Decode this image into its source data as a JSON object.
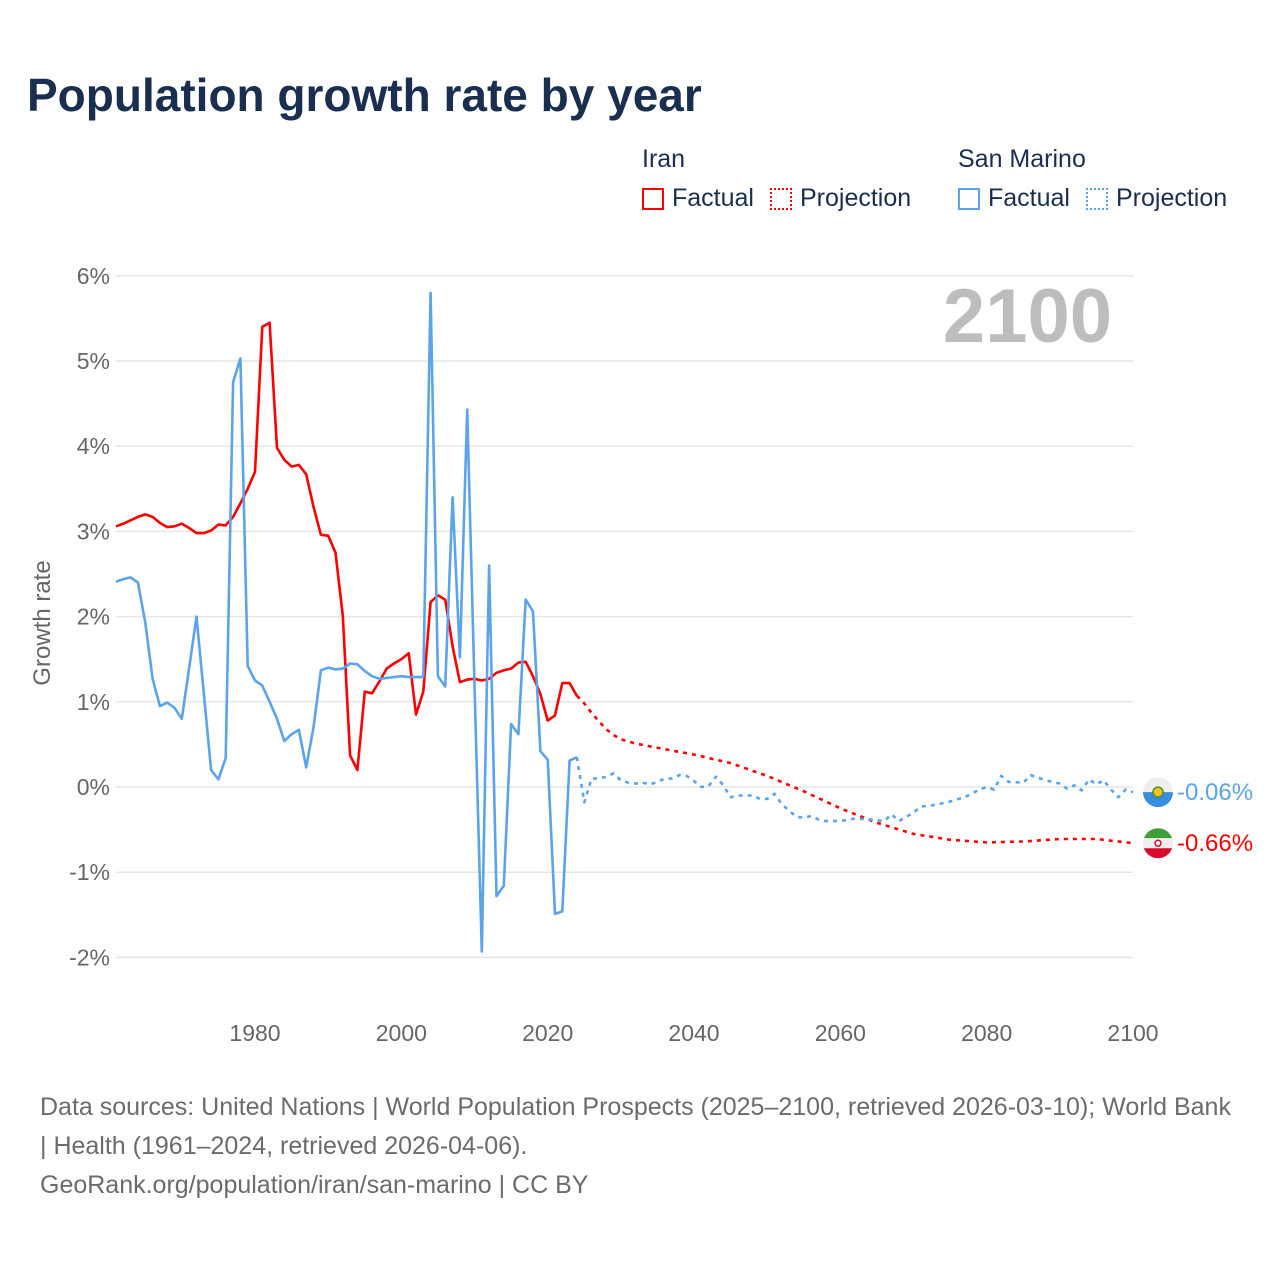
{
  "title": "Population growth rate by year",
  "legend": {
    "groups": [
      {
        "name": "Iran",
        "factual": "Factual",
        "projection": "Projection",
        "color": "#ff0000"
      },
      {
        "name": "San Marino",
        "factual": "Factual",
        "projection": "Projection",
        "color": "#5ba4ea"
      }
    ]
  },
  "current_year_label": "2100",
  "footer": {
    "sources": "Data sources: United Nations | World Population Prospects (2025–2100, retrieved 2026-03-10); World Bank | Health (1961–2024, retrieved 2026-04-06).",
    "credit": "GeoRank.org/population/iran/san-marino | CC BY"
  },
  "chart_data": {
    "type": "line",
    "title": "Population growth rate by year",
    "xlabel": "",
    "ylabel": "Growth rate",
    "xlim": [
      1961,
      2100
    ],
    "ylim": [
      -2.6,
      6
    ],
    "xticks": [
      1980,
      2000,
      2020,
      2040,
      2060,
      2080,
      2100
    ],
    "xtick_labels": [
      "1980",
      "2000",
      "2020",
      "2040",
      "2060",
      "2080",
      "2100"
    ],
    "yticks": [
      6,
      5,
      4,
      3,
      2,
      1,
      0,
      -1,
      -2
    ],
    "ytick_labels": [
      "6%",
      "5%",
      "4%",
      "3%",
      "2%",
      "1%",
      "0%",
      "-1%",
      "-2%"
    ],
    "grid": true,
    "legend_position": "top-right",
    "series": [
      {
        "name": "Iran",
        "kind": "factual",
        "color": "#ff0000",
        "points": [
          [
            1961,
            3.06
          ],
          [
            1962,
            3.09
          ],
          [
            1963,
            3.13
          ],
          [
            1964,
            3.17
          ],
          [
            1965,
            3.2
          ],
          [
            1966,
            3.17
          ],
          [
            1967,
            3.1
          ],
          [
            1968,
            3.05
          ],
          [
            1969,
            3.06
          ],
          [
            1970,
            3.09
          ],
          [
            1971,
            3.04
          ],
          [
            1972,
            2.98
          ],
          [
            1973,
            2.98
          ],
          [
            1974,
            3.01
          ],
          [
            1975,
            3.08
          ],
          [
            1976,
            3.07
          ],
          [
            1977,
            3.17
          ],
          [
            1978,
            3.33
          ],
          [
            1979,
            3.5
          ],
          [
            1980,
            3.7
          ],
          [
            1981,
            5.4
          ],
          [
            1982,
            5.45
          ],
          [
            1983,
            3.98
          ],
          [
            1984,
            3.84
          ],
          [
            1985,
            3.76
          ],
          [
            1986,
            3.78
          ],
          [
            1987,
            3.67
          ],
          [
            1988,
            3.29
          ],
          [
            1989,
            2.96
          ],
          [
            1990,
            2.95
          ],
          [
            1991,
            2.75
          ],
          [
            1992,
            2.01
          ],
          [
            1993,
            0.37
          ],
          [
            1994,
            0.2
          ],
          [
            1995,
            1.12
          ],
          [
            1996,
            1.1
          ],
          [
            1997,
            1.24
          ],
          [
            1998,
            1.39
          ],
          [
            1999,
            1.45
          ],
          [
            2000,
            1.5
          ],
          [
            2001,
            1.57
          ],
          [
            2002,
            0.85
          ],
          [
            2003,
            1.12
          ],
          [
            2004,
            2.17
          ],
          [
            2005,
            2.25
          ],
          [
            2006,
            2.2
          ],
          [
            2007,
            1.65
          ],
          [
            2008,
            1.23
          ],
          [
            2009,
            1.26
          ],
          [
            2010,
            1.27
          ],
          [
            2011,
            1.25
          ],
          [
            2012,
            1.27
          ],
          [
            2013,
            1.34
          ],
          [
            2014,
            1.37
          ],
          [
            2015,
            1.39
          ],
          [
            2016,
            1.46
          ],
          [
            2017,
            1.47
          ],
          [
            2018,
            1.3
          ],
          [
            2019,
            1.09
          ],
          [
            2020,
            0.78
          ],
          [
            2021,
            0.84
          ],
          [
            2022,
            1.22
          ],
          [
            2023,
            1.22
          ],
          [
            2024,
            1.07
          ]
        ]
      },
      {
        "name": "Iran",
        "kind": "projection",
        "color": "#ff0000",
        "points": [
          [
            2024,
            1.07
          ],
          [
            2025,
            0.98
          ],
          [
            2026,
            0.87
          ],
          [
            2027,
            0.77
          ],
          [
            2028,
            0.68
          ],
          [
            2029,
            0.61
          ],
          [
            2030,
            0.56
          ],
          [
            2032,
            0.51
          ],
          [
            2035,
            0.46
          ],
          [
            2040,
            0.38
          ],
          [
            2045,
            0.28
          ],
          [
            2050,
            0.13
          ],
          [
            2055,
            -0.05
          ],
          [
            2060,
            -0.25
          ],
          [
            2065,
            -0.42
          ],
          [
            2070,
            -0.55
          ],
          [
            2075,
            -0.62
          ],
          [
            2080,
            -0.65
          ],
          [
            2085,
            -0.64
          ],
          [
            2090,
            -0.61
          ],
          [
            2095,
            -0.61
          ],
          [
            2100,
            -0.66
          ]
        ]
      },
      {
        "name": "San Marino",
        "kind": "factual",
        "color": "#5ba4ea",
        "points": [
          [
            1961,
            2.41
          ],
          [
            1962,
            2.44
          ],
          [
            1963,
            2.46
          ],
          [
            1964,
            2.4
          ],
          [
            1965,
            1.93
          ],
          [
            1966,
            1.27
          ],
          [
            1967,
            0.95
          ],
          [
            1968,
            0.99
          ],
          [
            1969,
            0.93
          ],
          [
            1970,
            0.8
          ],
          [
            1971,
            1.4
          ],
          [
            1972,
            2.0
          ],
          [
            1973,
            1.1
          ],
          [
            1974,
            0.2
          ],
          [
            1975,
            0.09
          ],
          [
            1976,
            0.34
          ],
          [
            1977,
            4.75
          ],
          [
            1978,
            5.03
          ],
          [
            1979,
            1.42
          ],
          [
            1980,
            1.25
          ],
          [
            1981,
            1.19
          ],
          [
            1982,
            1.0
          ],
          [
            1983,
            0.8
          ],
          [
            1984,
            0.54
          ],
          [
            1985,
            0.62
          ],
          [
            1986,
            0.67
          ],
          [
            1987,
            0.23
          ],
          [
            1988,
            0.7
          ],
          [
            1989,
            1.37
          ],
          [
            1990,
            1.4
          ],
          [
            1991,
            1.38
          ],
          [
            1992,
            1.39
          ],
          [
            1993,
            1.45
          ],
          [
            1994,
            1.44
          ],
          [
            1995,
            1.36
          ],
          [
            1996,
            1.3
          ],
          [
            1997,
            1.27
          ],
          [
            1998,
            1.28
          ],
          [
            1999,
            1.29
          ],
          [
            2000,
            1.3
          ],
          [
            2001,
            1.29
          ],
          [
            2002,
            1.29
          ],
          [
            2003,
            1.29
          ],
          [
            2004,
            5.8
          ],
          [
            2005,
            1.3
          ],
          [
            2006,
            1.18
          ],
          [
            2007,
            3.4
          ],
          [
            2008,
            1.52
          ],
          [
            2009,
            4.43
          ],
          [
            2010,
            1.2
          ],
          [
            2011,
            -1.93
          ],
          [
            2012,
            2.6
          ],
          [
            2013,
            -1.28
          ],
          [
            2014,
            -1.16
          ],
          [
            2015,
            0.74
          ],
          [
            2016,
            0.62
          ],
          [
            2017,
            2.2
          ],
          [
            2018,
            2.06
          ],
          [
            2019,
            0.42
          ],
          [
            2020,
            0.32
          ],
          [
            2021,
            -1.49
          ],
          [
            2022,
            -1.46
          ],
          [
            2023,
            0.31
          ],
          [
            2024,
            0.35
          ]
        ]
      },
      {
        "name": "San Marino",
        "kind": "projection",
        "color": "#5ba4ea",
        "points": [
          [
            2024,
            0.35
          ],
          [
            2025,
            -0.18
          ],
          [
            2026,
            0.1
          ],
          [
            2027,
            0.1
          ],
          [
            2028,
            0.12
          ],
          [
            2029,
            0.16
          ],
          [
            2030,
            0.08
          ],
          [
            2031,
            0.05
          ],
          [
            2032,
            0.04
          ],
          [
            2033,
            0.05
          ],
          [
            2034,
            0.03
          ],
          [
            2035,
            0.06
          ],
          [
            2036,
            0.1
          ],
          [
            2037,
            0.1
          ],
          [
            2038,
            0.14
          ],
          [
            2039,
            0.13
          ],
          [
            2040,
            0.07
          ],
          [
            2041,
            0.0
          ],
          [
            2042,
            0.01
          ],
          [
            2043,
            0.12
          ],
          [
            2044,
            0.02
          ],
          [
            2045,
            -0.12
          ],
          [
            2046,
            -0.1
          ],
          [
            2047,
            -0.1
          ],
          [
            2048,
            -0.1
          ],
          [
            2049,
            -0.14
          ],
          [
            2050,
            -0.14
          ],
          [
            2051,
            -0.08
          ],
          [
            2052,
            -0.2
          ],
          [
            2053,
            -0.28
          ],
          [
            2054,
            -0.35
          ],
          [
            2055,
            -0.36
          ],
          [
            2056,
            -0.34
          ],
          [
            2057,
            -0.38
          ],
          [
            2058,
            -0.4
          ],
          [
            2060,
            -0.4
          ],
          [
            2062,
            -0.37
          ],
          [
            2064,
            -0.38
          ],
          [
            2066,
            -0.4
          ],
          [
            2067,
            -0.32
          ],
          [
            2068,
            -0.4
          ],
          [
            2070,
            -0.3
          ],
          [
            2071,
            -0.23
          ],
          [
            2073,
            -0.21
          ],
          [
            2075,
            -0.17
          ],
          [
            2077,
            -0.12
          ],
          [
            2079,
            -0.03
          ],
          [
            2080,
            0.0
          ],
          [
            2081,
            -0.03
          ],
          [
            2082,
            0.13
          ],
          [
            2083,
            0.06
          ],
          [
            2085,
            0.05
          ],
          [
            2086,
            0.14
          ],
          [
            2088,
            0.08
          ],
          [
            2090,
            0.04
          ],
          [
            2091,
            -0.02
          ],
          [
            2092,
            0.02
          ],
          [
            2093,
            -0.04
          ],
          [
            2094,
            0.09
          ],
          [
            2095,
            0.03
          ],
          [
            2096,
            0.08
          ],
          [
            2097,
            -0.03
          ],
          [
            2098,
            -0.12
          ],
          [
            2099,
            -0.03
          ],
          [
            2100,
            -0.06
          ]
        ]
      }
    ],
    "end_labels": [
      {
        "name": "San Marino",
        "text": "-0.06%",
        "value": -0.06,
        "color": "#5ba4ea"
      },
      {
        "name": "Iran",
        "text": "-0.66%",
        "value": -0.66,
        "color": "#ff0000"
      }
    ]
  }
}
